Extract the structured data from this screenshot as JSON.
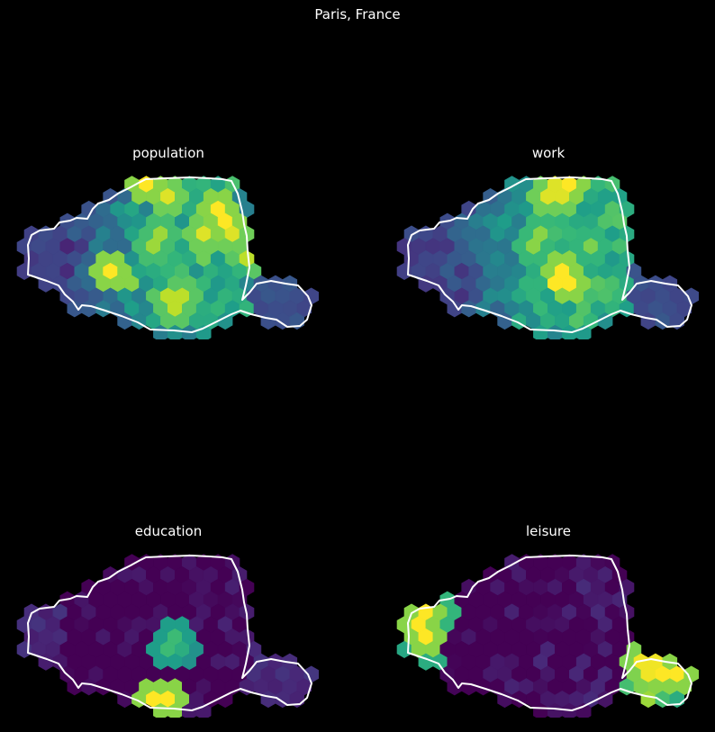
{
  "figure": {
    "title": "Paris, France"
  },
  "colormap": "viridis",
  "colors": {
    "background": "#000000",
    "outline": "#ffffff"
  },
  "panels": [
    {
      "id": "population",
      "title": "population",
      "hotspots": [
        [
          0.4,
          0.02,
          1.0
        ],
        [
          0.5,
          0.12,
          0.95
        ],
        [
          0.68,
          0.25,
          1.0
        ],
        [
          0.62,
          0.4,
          0.95
        ],
        [
          0.72,
          0.36,
          0.95
        ],
        [
          0.78,
          0.47,
          0.9
        ],
        [
          0.3,
          0.62,
          1.0
        ],
        [
          0.52,
          0.8,
          0.9
        ],
        [
          0.45,
          0.4,
          0.85
        ]
      ],
      "hot_area": [
        0.05,
        0.5,
        0.55,
        0.66
      ],
      "west": 0.15,
      "east": 0.2
    },
    {
      "id": "work",
      "title": "work",
      "hotspots": [
        [
          0.56,
          0.02,
          1.0
        ],
        [
          0.52,
          0.1,
          0.95
        ],
        [
          0.55,
          0.66,
          1.0
        ],
        [
          0.45,
          0.4,
          0.82
        ],
        [
          0.65,
          0.45,
          0.8
        ]
      ],
      "hot_area": [
        0.05,
        0.52,
        0.5,
        0.6
      ],
      "west": 0.15,
      "east": 0.2
    },
    {
      "id": "education",
      "title": "education",
      "hotspots": [
        [
          0.47,
          0.92,
          1.0
        ],
        [
          0.5,
          0.56,
          0.68
        ],
        [
          0.53,
          0.58,
          0.62
        ]
      ],
      "hot_area": [
        0.05,
        0.1,
        0.5,
        0.15
      ],
      "west": 0.05,
      "east": 0.08
    },
    {
      "id": "leisure",
      "title": "leisure",
      "hotspots": [
        [
          0.05,
          0.42,
          1.0
        ],
        [
          0.07,
          0.52,
          1.0
        ],
        [
          0.1,
          0.33,
          0.8
        ],
        [
          0.84,
          0.71,
          0.98
        ],
        [
          0.93,
          0.76,
          1.0
        ],
        [
          0.87,
          0.78,
          0.9
        ],
        [
          0.82,
          0.92,
          0.85
        ]
      ],
      "hot_area": [
        0.05,
        0.12,
        0.5,
        0.15
      ],
      "west": 0.55,
      "east": 0.55
    }
  ]
}
